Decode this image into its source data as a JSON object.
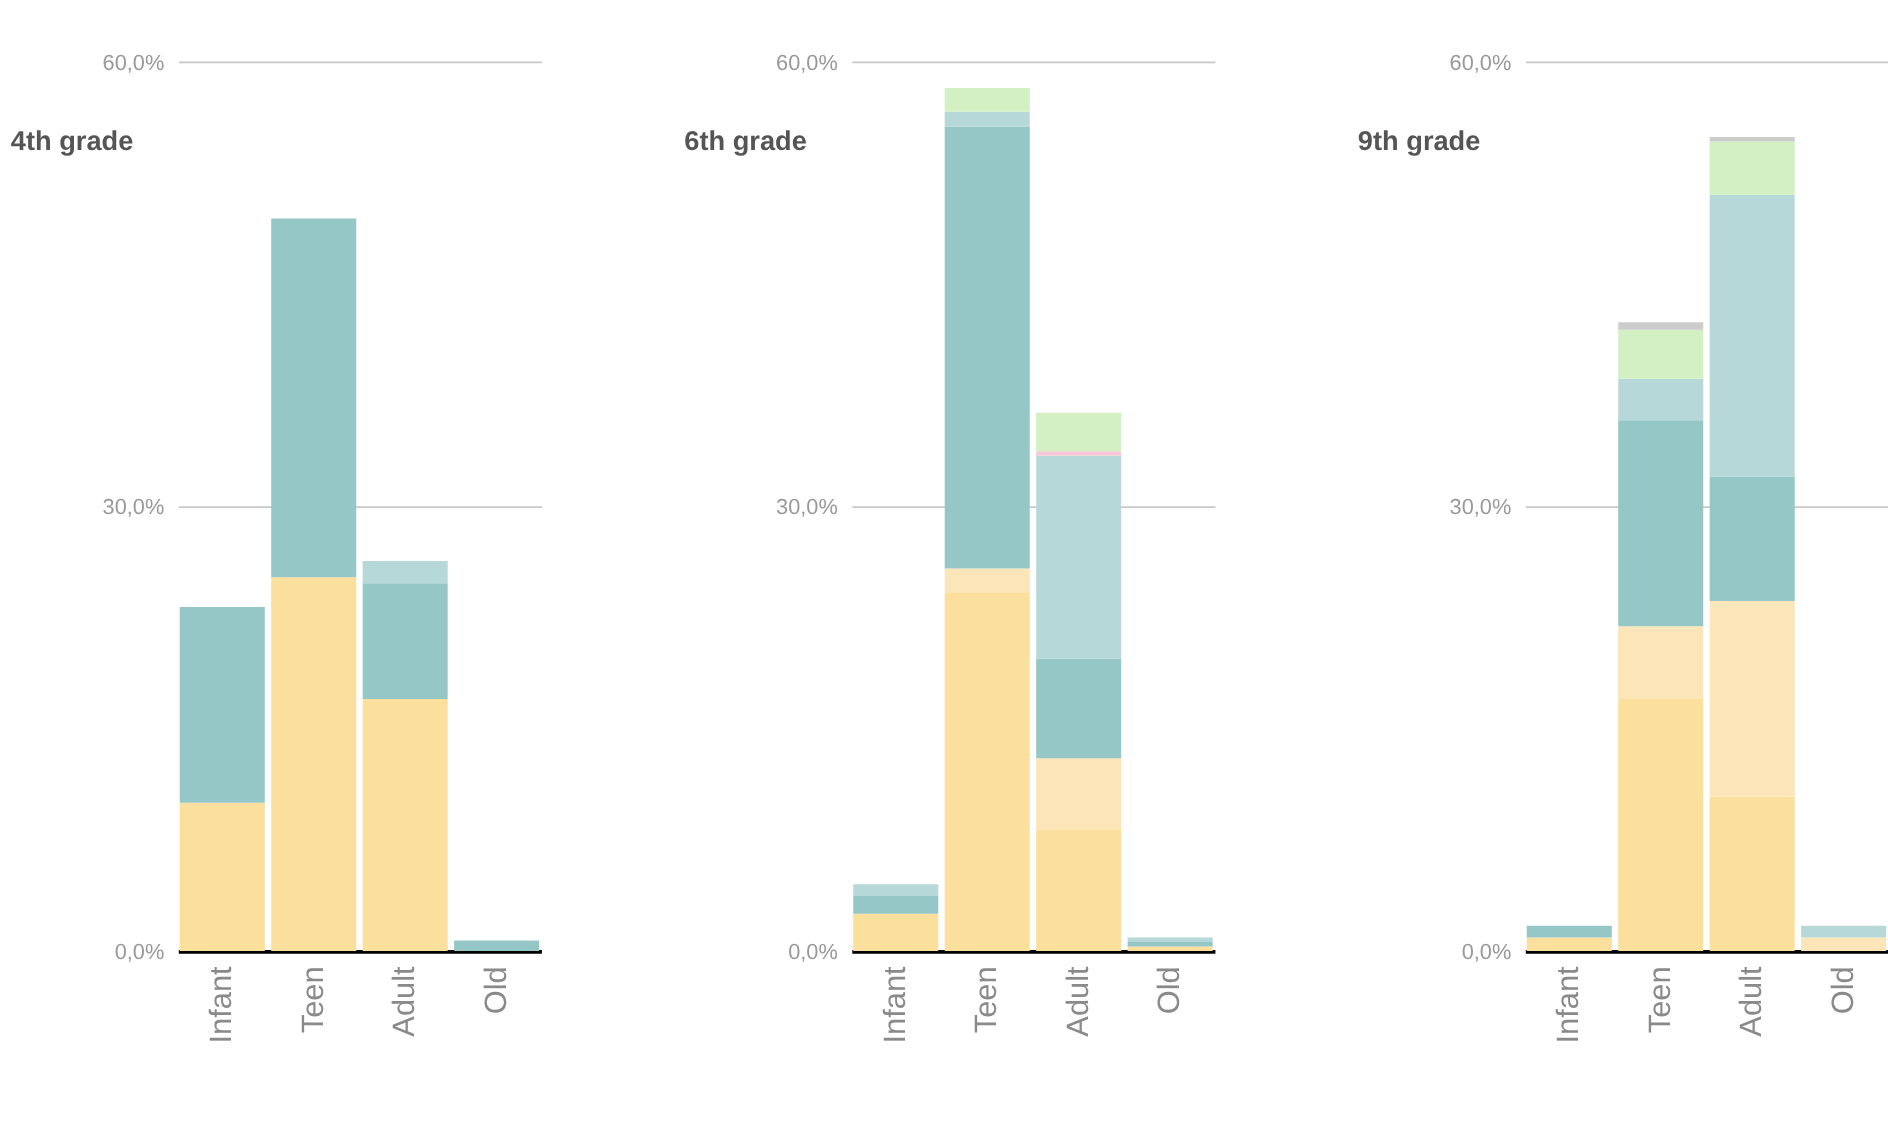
{
  "chart_data": [
    {
      "type": "bar",
      "stacked": true,
      "title": "4th grade",
      "categories": [
        "Infant",
        "Teen",
        "Adult",
        "Old"
      ],
      "ylim": [
        0,
        60
      ],
      "yticks": [
        {
          "value": 0,
          "label": "0,0%"
        },
        {
          "value": 30,
          "label": "30,0%"
        },
        {
          "value": 60,
          "label": "60,0%"
        }
      ],
      "grid": "y",
      "legend": false,
      "series": [
        {
          "color": "#fbdf9d",
          "values": [
            10.0,
            25.2,
            17.0,
            0
          ]
        },
        {
          "color": "#95c7c7",
          "values": [
            13.2,
            24.2,
            7.8,
            0.7
          ]
        },
        {
          "color": "#b7d8d8",
          "values": [
            0,
            0,
            1.5,
            0
          ]
        }
      ]
    },
    {
      "type": "bar",
      "stacked": true,
      "title": "6th grade",
      "categories": [
        "Infant",
        "Teen",
        "Adult",
        "Old"
      ],
      "ylim": [
        0,
        60
      ],
      "yticks": [
        {
          "value": 0,
          "label": "0,0%"
        },
        {
          "value": 30,
          "label": "30,0%"
        },
        {
          "value": 60,
          "label": "60,0%"
        }
      ],
      "grid": "y",
      "legend": false,
      "series": [
        {
          "color": "#fbdf9d",
          "values": [
            2.5,
            24.2,
            8.2,
            0.3
          ]
        },
        {
          "color": "#fce5b8",
          "values": [
            0,
            1.6,
            4.8,
            0
          ]
        },
        {
          "color": "#95c7c7",
          "values": [
            1.2,
            29.8,
            6.7,
            0.3
          ]
        },
        {
          "color": "#b7d8d8",
          "values": [
            0.8,
            1.0,
            13.7,
            0.3
          ]
        },
        {
          "color": "#f5c9d8",
          "values": [
            0,
            0,
            0.3,
            0
          ]
        },
        {
          "color": "#d2f0c2",
          "values": [
            0,
            1.6,
            2.6,
            0
          ]
        }
      ]
    },
    {
      "type": "bar",
      "stacked": true,
      "title": "9th grade",
      "categories": [
        "Infant",
        "Teen",
        "Adult",
        "Old"
      ],
      "ylim": [
        0,
        60
      ],
      "yticks": [
        {
          "value": 0,
          "label": "0,0%"
        },
        {
          "value": 30,
          "label": "30,0%"
        },
        {
          "value": 60,
          "label": "60,0%"
        }
      ],
      "grid": "y",
      "legend": false,
      "series": [
        {
          "color": "#fbdf9d",
          "values": [
            0.9,
            17.0,
            10.4,
            0
          ]
        },
        {
          "color": "#fce5b8",
          "values": [
            0,
            4.9,
            13.2,
            0.9
          ]
        },
        {
          "color": "#95c7c7",
          "values": [
            0.8,
            13.9,
            8.4,
            0
          ]
        },
        {
          "color": "#b7d8d8",
          "values": [
            0,
            2.8,
            19.0,
            0.8
          ]
        },
        {
          "color": "#d2f0c2",
          "values": [
            0,
            3.3,
            3.6,
            0
          ]
        },
        {
          "color": "#cccccc",
          "values": [
            0,
            0.5,
            0.3,
            0
          ]
        }
      ]
    }
  ]
}
